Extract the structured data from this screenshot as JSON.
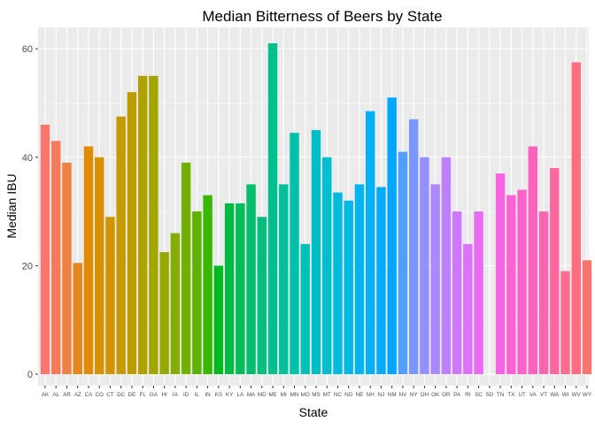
{
  "chart_data": {
    "type": "bar",
    "title": "Median Bitterness of Beers by State",
    "xlabel": "State",
    "ylabel": "Median IBU",
    "ylim": [
      0,
      62.5
    ],
    "y_ticks": [
      0,
      20,
      40,
      60
    ],
    "grid": true,
    "legend": "none",
    "colors": {
      "panel_background": "#ebebeb",
      "gridline": "#ffffff"
    },
    "categories": [
      "AK",
      "AL",
      "AR",
      "AZ",
      "CA",
      "CO",
      "CT",
      "DC",
      "DE",
      "FL",
      "GA",
      "HI",
      "IA",
      "ID",
      "IL",
      "IN",
      "KS",
      "KY",
      "LA",
      "MA",
      "MD",
      "ME",
      "MI",
      "MN",
      "MO",
      "MS",
      "MT",
      "NC",
      "ND",
      "NE",
      "NH",
      "NJ",
      "NM",
      "NV",
      "NY",
      "OH",
      "OK",
      "OR",
      "PA",
      "RI",
      "SC",
      "SD",
      "TN",
      "TX",
      "UT",
      "VA",
      "VT",
      "WA",
      "WI",
      "WV",
      "WY"
    ],
    "values": [
      46,
      43,
      39,
      20.5,
      42,
      40,
      29,
      47.5,
      52,
      55,
      55,
      22.5,
      26,
      39,
      30,
      33,
      20,
      31.5,
      31.5,
      35,
      29,
      61,
      35,
      44.5,
      24,
      45,
      40,
      33.5,
      32,
      35,
      48.5,
      34.5,
      51,
      41,
      47,
      40,
      35,
      40,
      30,
      24,
      30,
      null,
      37,
      33,
      34,
      42,
      30,
      38,
      19,
      57.5,
      21
    ],
    "bar_colors": [
      "#f8766d",
      "#f37b59",
      "#ed8141",
      "#e7861b",
      "#e08b00",
      "#d89000",
      "#cf9400",
      "#c59900",
      "#bb9d00",
      "#b0a100",
      "#a3a500",
      "#95a900",
      "#85ad00",
      "#72b000",
      "#5bb300",
      "#39b600",
      "#00b81f",
      "#00ba42",
      "#00bc59",
      "#00be6c",
      "#00bf7d",
      "#00c08d",
      "#00c19c",
      "#00c1aa",
      "#00c0b8",
      "#00bfc4",
      "#00bdd0",
      "#00bbdb",
      "#00b8e5",
      "#00b4ef",
      "#00b0f6",
      "#00abfd",
      "#00a5ff",
      "#529eff",
      "#7997ff",
      "#9590ff",
      "#ab88ff",
      "#bf80ff",
      "#cf78ff",
      "#dc71fa",
      "#e76bf3",
      "#f066ea",
      "#f763e0",
      "#fc61d5",
      "#ff61c9",
      "#ff62bc",
      "#ff65ae",
      "#ff689f",
      "#ff6c90",
      "#fd6f80",
      "#f8766d"
    ]
  }
}
